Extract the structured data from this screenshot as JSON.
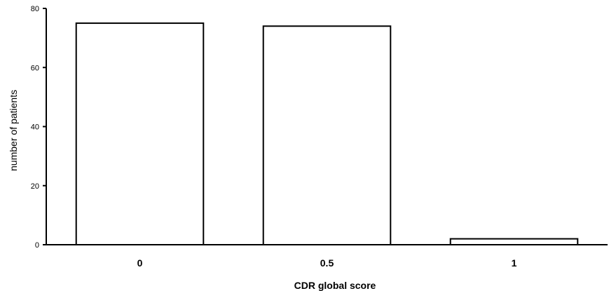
{
  "chart_data": {
    "type": "bar",
    "categories": [
      "0",
      "0.5",
      "1"
    ],
    "values": [
      75,
      74,
      2
    ],
    "title": "",
    "xlabel": "CDR global score",
    "ylabel": "number of patients",
    "ylim": [
      0,
      80
    ],
    "yticks": [
      "0",
      "20",
      "40",
      "60",
      "80"
    ],
    "grid": false,
    "bar_fill": "#ffffff",
    "bar_stroke": "#000000"
  }
}
